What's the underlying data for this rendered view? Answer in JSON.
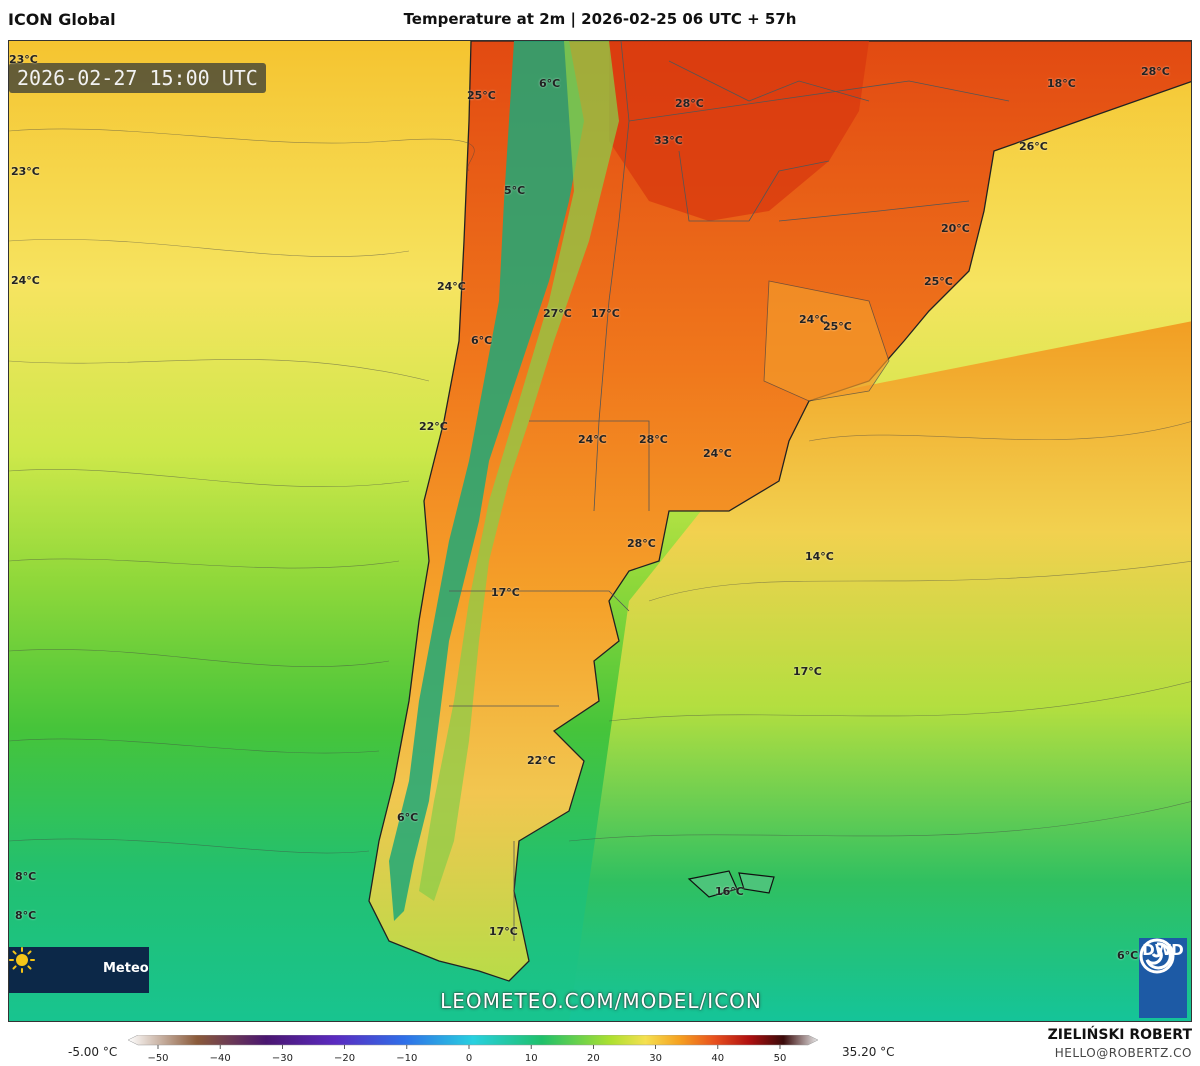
{
  "header": {
    "model": "ICON Global",
    "title": "Temperature at 2m | 2026-02-25 06 UTC + 57h"
  },
  "map": {
    "timestamp": "2026-02-27 15:00 UTC",
    "watermark": "LEOMETEO.COM/MODEL/ICON",
    "brand_text": "Meteo",
    "dwd_label": "DWD",
    "labels": [
      {
        "text": "23°C"
      },
      {
        "text": "23°C"
      },
      {
        "text": "24°C"
      },
      {
        "text": "25°C"
      },
      {
        "text": "6°C"
      },
      {
        "text": "28°C"
      },
      {
        "text": "33°C"
      },
      {
        "text": "18°C"
      },
      {
        "text": "28°C"
      },
      {
        "text": "26°C"
      },
      {
        "text": "5°C"
      },
      {
        "text": "20°C"
      },
      {
        "text": "25°C"
      },
      {
        "text": "24°C"
      },
      {
        "text": "27°C"
      },
      {
        "text": "17°C"
      },
      {
        "text": "24°C"
      },
      {
        "text": "25°C"
      },
      {
        "text": "6°C"
      },
      {
        "text": "22°C"
      },
      {
        "text": "24°C"
      },
      {
        "text": "28°C"
      },
      {
        "text": "24°C"
      },
      {
        "text": "28°C"
      },
      {
        "text": "14°C"
      },
      {
        "text": "17°C"
      },
      {
        "text": "17°C"
      },
      {
        "text": "22°C"
      },
      {
        "text": "8°C"
      },
      {
        "text": "8°C"
      },
      {
        "text": "16°C"
      },
      {
        "text": "17°C"
      },
      {
        "text": "6°C"
      },
      {
        "text": "6°C"
      }
    ]
  },
  "legend": {
    "min_label": "-5.00 °C",
    "max_label": "35.20 °C",
    "ticks": [
      "−50",
      "−40",
      "−30",
      "−20",
      "−10",
      "0",
      "10",
      "20",
      "30",
      "40",
      "50"
    ],
    "stops": [
      {
        "value": -50,
        "color": "#ffffff"
      },
      {
        "value": -40,
        "color": "#8a5a3a"
      },
      {
        "value": -30,
        "color": "#4a1670"
      },
      {
        "value": -20,
        "color": "#5a2ac0"
      },
      {
        "value": -10,
        "color": "#2f6ee8"
      },
      {
        "value": 0,
        "color": "#28d0e0"
      },
      {
        "value": 10,
        "color": "#1fc06a"
      },
      {
        "value": 20,
        "color": "#aee030"
      },
      {
        "value": 25,
        "color": "#f5e050"
      },
      {
        "value": 30,
        "color": "#f5a020"
      },
      {
        "value": 35,
        "color": "#e8501e"
      },
      {
        "value": 40,
        "color": "#b01010"
      },
      {
        "value": 45,
        "color": "#3a0a0a"
      },
      {
        "value": 50,
        "color": "#e8e8e8"
      }
    ]
  },
  "credits": {
    "author": "ZIELIŃSKI ROBERT",
    "email": "HELLO@ROBERTZ.CO"
  }
}
